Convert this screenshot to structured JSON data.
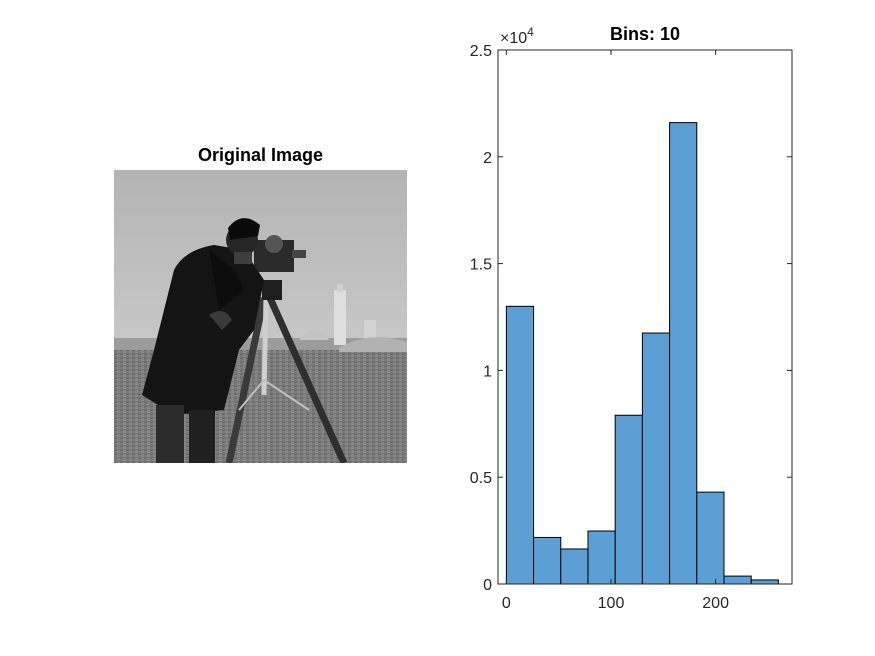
{
  "image_panel": {
    "title": "Original Image"
  },
  "histogram": {
    "title": "Bins: 10",
    "exponent_label": "×10",
    "exponent_power": "4"
  },
  "chart_data": {
    "type": "bar",
    "title": "Bins: 10",
    "xlabel": "",
    "ylabel": "",
    "bin_edges": [
      0,
      26,
      52,
      78,
      104,
      130,
      156,
      182,
      208,
      234,
      260
    ],
    "values": [
      13000,
      2180,
      1640,
      2480,
      7900,
      11750,
      21600,
      4300,
      370,
      190
    ],
    "xlim": [
      -8,
      273
    ],
    "ylim": [
      0,
      25000
    ],
    "xticks": [
      0,
      100,
      200
    ],
    "yticks": [
      0,
      0.5,
      1,
      1.5,
      2,
      2.5
    ],
    "ytick_scale": 10000,
    "bar_color": "#5b9fd5",
    "edge_color": "#000000",
    "grid": false
  }
}
